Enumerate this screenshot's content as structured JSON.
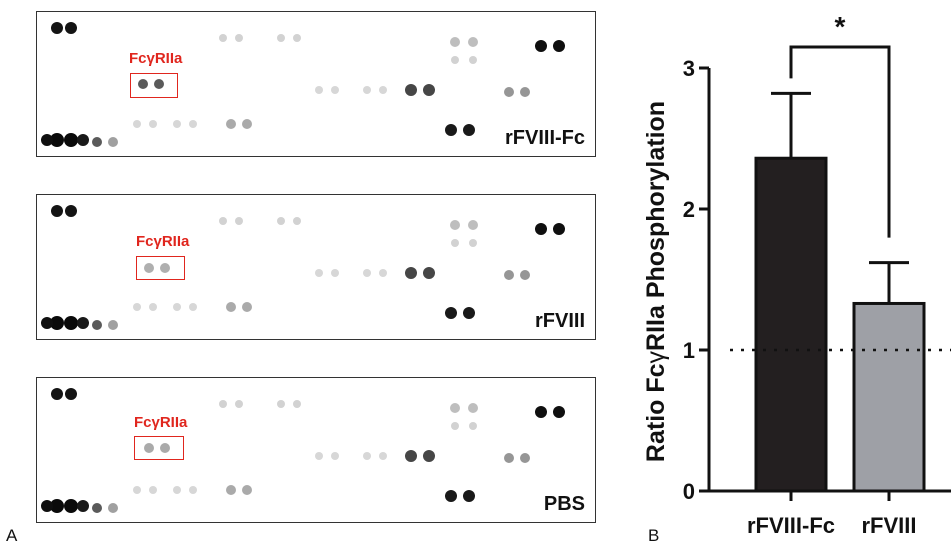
{
  "panel_a": {
    "letter": "A",
    "blots": [
      {
        "label": "rFVIII-Fc",
        "marker": "FcγRIIa"
      },
      {
        "label": "rFVIII",
        "marker": "FcγRIIa"
      },
      {
        "label": "PBS",
        "marker": "FcγRIIa"
      }
    ]
  },
  "panel_b": {
    "letter": "B"
  },
  "colors": {
    "marker": "#e0261e",
    "bar_rfviii_fc": "#231f20",
    "bar_rfviii": "#9ea0a6"
  },
  "chart_data": {
    "type": "bar",
    "categories": [
      "rFVIII-Fc",
      "rFVIII"
    ],
    "values": [
      2.36,
      1.33
    ],
    "errors": [
      0.46,
      0.29
    ],
    "ylabel_prefix": "Ratio Fc",
    "ylabel_gamma": "γ",
    "ylabel_suffix": "RIIa Phosphorylation",
    "ylim": [
      0,
      3
    ],
    "yticks": [
      "0",
      "1",
      "2",
      "3"
    ],
    "reference_line": 1,
    "significance": "*"
  }
}
